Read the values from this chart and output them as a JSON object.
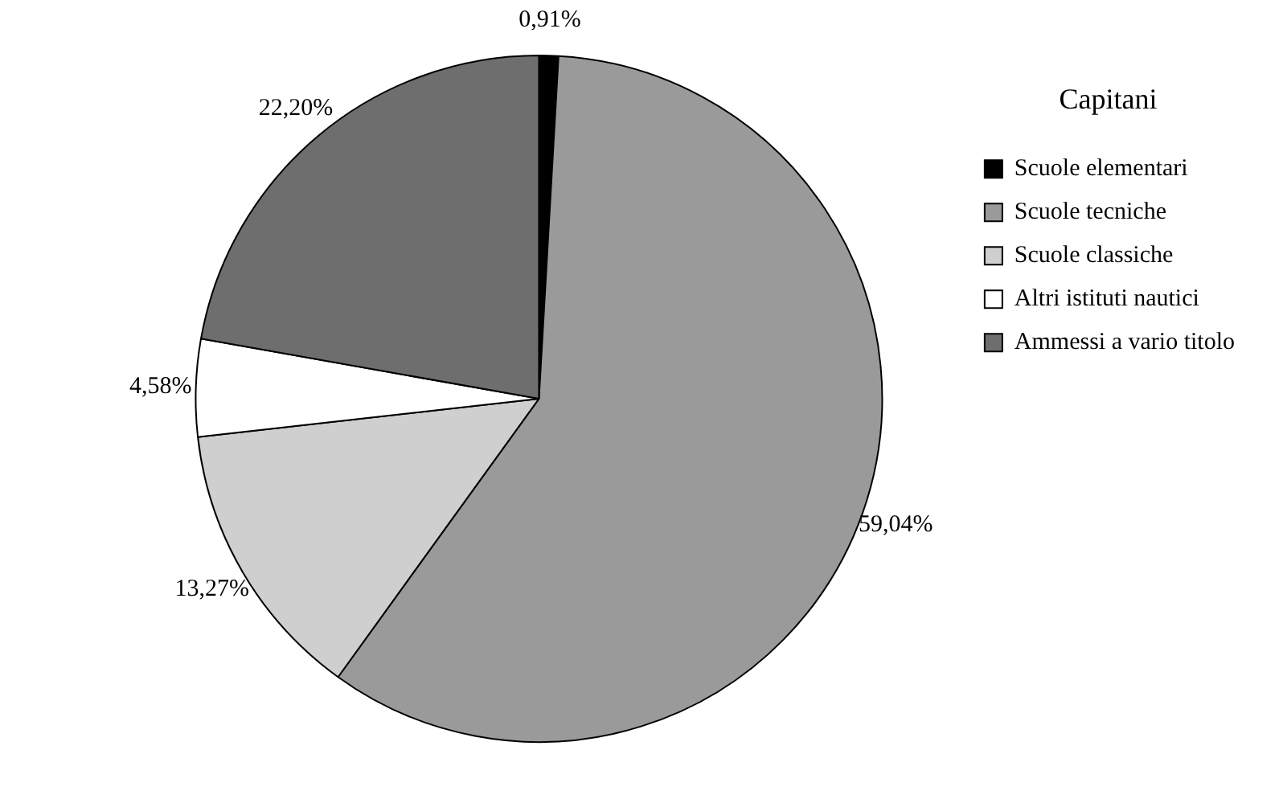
{
  "chart_data": {
    "type": "pie",
    "legend_title": "Capitani",
    "legend": "right",
    "categories": [
      "Scuole elementari",
      "Scuole tecniche",
      "Scuole classiche",
      "Altri istituti nautici",
      "Ammessi a vario titolo"
    ],
    "values": [
      0.91,
      59.04,
      13.27,
      4.58,
      22.2
    ],
    "value_labels": [
      "0,91%",
      "59,04%",
      "13,27%",
      "4,58%",
      "22,20%"
    ],
    "colors": [
      "#000000",
      "#9a9a9a",
      "#cfcfcf",
      "#ffffff",
      "#6e6e6e"
    ]
  }
}
